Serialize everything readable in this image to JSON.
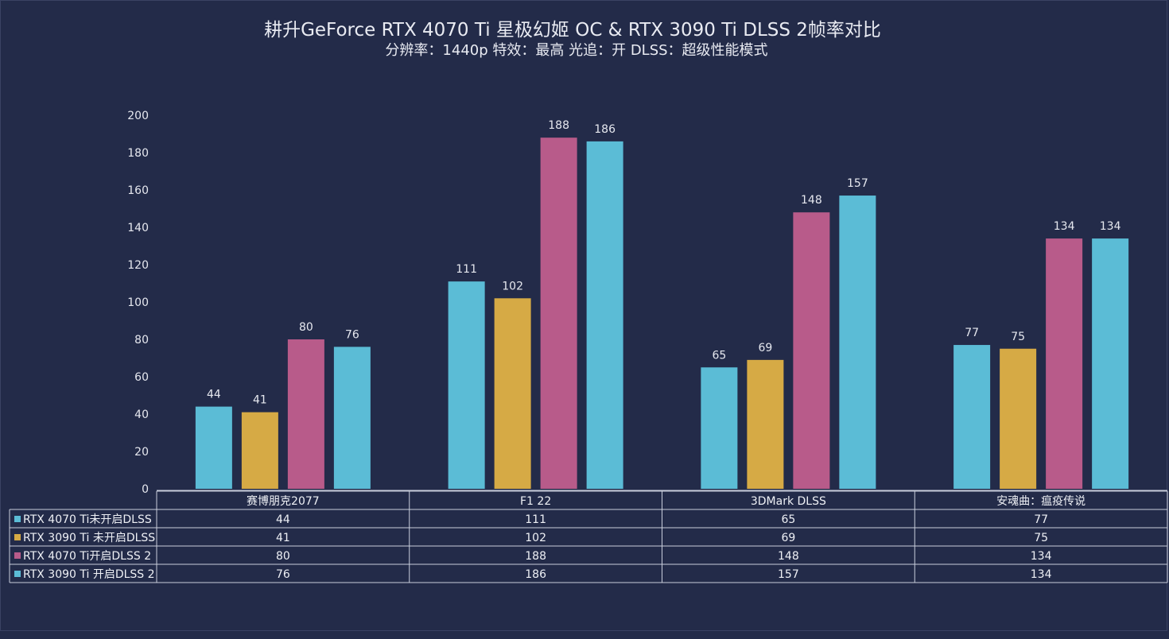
{
  "chart_data": {
    "type": "bar",
    "title": "耕升GeForce RTX 4070 Ti 星极幻姬 OC & RTX 3090 Ti DLSS 2帧率对比",
    "subtitle": "分辨率：1440p   特效：最高   光追：开  DLSS：超级性能模式",
    "xlabel": "",
    "ylabel": "",
    "ylim": [
      0,
      200
    ],
    "yticks": [
      0,
      20,
      40,
      60,
      80,
      100,
      120,
      140,
      160,
      180,
      200
    ],
    "categories": [
      "赛博朋克2077",
      "F1 22",
      "3DMark DLSS",
      "安魂曲：瘟疫传说"
    ],
    "series": [
      {
        "name": "RTX 4070 Ti未开启DLSS",
        "color": "#5bbcd6",
        "values": [
          44,
          111,
          65,
          77
        ]
      },
      {
        "name": "RTX 3090 Ti 未开启DLSS",
        "color": "#d6aa45",
        "values": [
          41,
          102,
          69,
          75
        ]
      },
      {
        "name": "RTX 4070 Ti开启DLSS 2",
        "color": "#b85b8a",
        "values": [
          80,
          188,
          148,
          134
        ]
      },
      {
        "name": "RTX 3090 Ti 开启DLSS 2",
        "color": "#5bbcd6",
        "values": [
          76,
          186,
          157,
          134
        ]
      }
    ],
    "grid": false,
    "legend": "data-table-below"
  }
}
